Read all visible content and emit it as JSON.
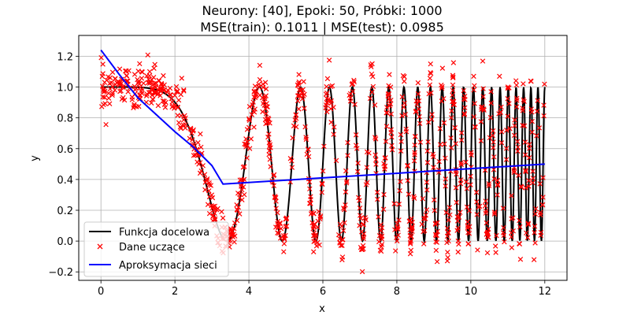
{
  "chart_data": {
    "type": "line",
    "title_line1": "Neurony: [40], Epoki: 50, Próbki: 1000",
    "title_line2": "MSE(train): 0.1011 | MSE(test): 0.0985",
    "xlabel": "x",
    "ylabel": "y",
    "xlim": [
      -0.6,
      12.6
    ],
    "ylim": [
      -0.255,
      1.335
    ],
    "x_ticks": [
      0,
      2,
      4,
      6,
      8,
      10,
      12
    ],
    "y_ticks": [
      -0.2,
      0.0,
      0.2,
      0.4,
      0.6,
      0.8,
      1.0,
      1.2
    ],
    "x_tick_labels": [
      "0",
      "2",
      "4",
      "6",
      "8",
      "10",
      "12"
    ],
    "y_tick_labels": [
      "−0.2",
      "0.0",
      "0.2",
      "0.4",
      "0.6",
      "0.8",
      "1.0",
      "1.2"
    ],
    "grid": true,
    "legend_position": "lower-left",
    "series": [
      {
        "name": "Funkcja docelowa",
        "kind": "line",
        "color": "#000000",
        "function": "0.5 + 0.5*cos(0.08*x^3)",
        "x_range": [
          0,
          12
        ]
      },
      {
        "name": "Dane uczące",
        "kind": "scatter",
        "marker": "x",
        "color": "#ff0000",
        "count": 1000,
        "noise_std": 0.07,
        "x_range": [
          0,
          12
        ]
      },
      {
        "name": "Aproksymacja sieci",
        "kind": "line",
        "color": "#0000ff",
        "x": [
          0,
          0.5,
          1,
          1.5,
          2,
          2.5,
          3,
          3.3,
          12
        ],
        "y": [
          1.24,
          1.08,
          0.93,
          0.82,
          0.71,
          0.61,
          0.49,
          0.37,
          0.5
        ]
      }
    ]
  }
}
